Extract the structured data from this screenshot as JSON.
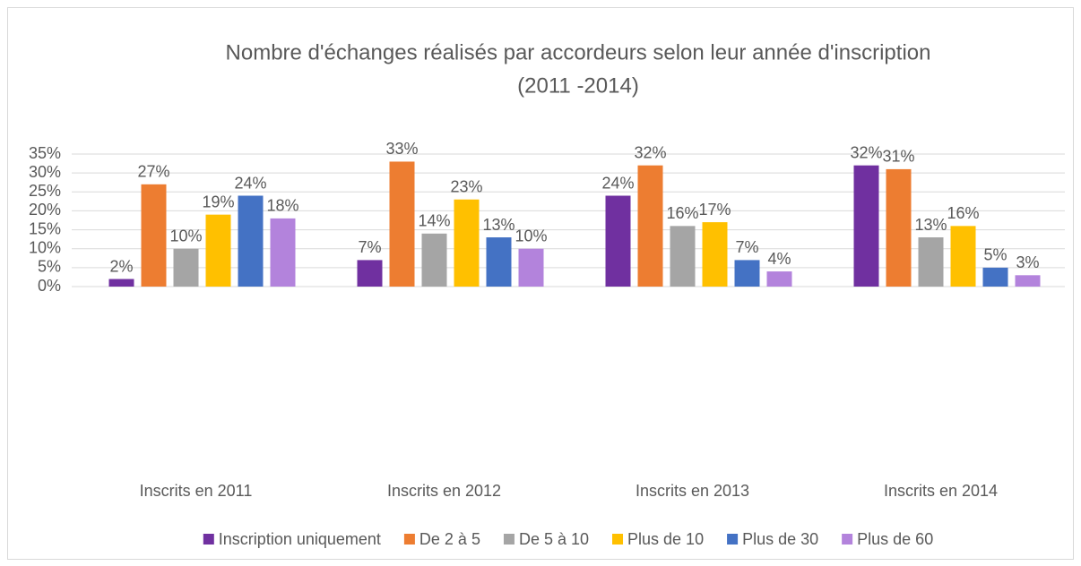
{
  "chart_data": {
    "type": "bar",
    "title": [
      "Nombre d'échanges réalisés par accordeurs selon leur année d'inscription",
      "(2011 -2014)"
    ],
    "categories": [
      "Inscrits en 2011",
      "Inscrits en 2012",
      "Inscrits en 2013",
      "Inscrits en 2014"
    ],
    "series": [
      {
        "name": "Inscription uniquement",
        "color": "#7030a0",
        "values": [
          2,
          7,
          24,
          32
        ],
        "value_labels": [
          "2%",
          "7%",
          "24%",
          "32%"
        ]
      },
      {
        "name": "De 2 à 5",
        "color": "#ed7d31",
        "values": [
          27,
          33,
          32,
          31
        ],
        "value_labels": [
          "27%",
          "33%",
          "32%",
          "31%"
        ]
      },
      {
        "name": "De 5 à 10",
        "color": "#a5a5a5",
        "values": [
          10,
          14,
          16,
          13
        ],
        "value_labels": [
          "10%",
          "14%",
          "16%",
          "13%"
        ]
      },
      {
        "name": "Plus de 10",
        "color": "#ffc000",
        "values": [
          19,
          23,
          17,
          16
        ],
        "value_labels": [
          "19%",
          "23%",
          "17%",
          "16%"
        ]
      },
      {
        "name": "Plus de 30",
        "color": "#4472c4",
        "values": [
          24,
          13,
          7,
          5
        ],
        "value_labels": [
          "24%",
          "13%",
          "7%",
          "5%"
        ]
      },
      {
        "name": "Plus de 60",
        "color": "#b383dc",
        "values": [
          18,
          10,
          4,
          3
        ],
        "value_labels": [
          "18%",
          "10%",
          "4%",
          "3%"
        ]
      }
    ],
    "ylim": [
      0,
      35
    ],
    "yticks": [
      {
        "value": 0,
        "label": "0%"
      },
      {
        "value": 5,
        "label": "5%"
      },
      {
        "value": 10,
        "label": "10%"
      },
      {
        "value": 15,
        "label": "15%"
      },
      {
        "value": 20,
        "label": "20%"
      },
      {
        "value": 25,
        "label": "25%"
      },
      {
        "value": 30,
        "label": "30%"
      },
      {
        "value": 35,
        "label": "35%"
      }
    ],
    "grid": true,
    "legend": "bottom"
  }
}
